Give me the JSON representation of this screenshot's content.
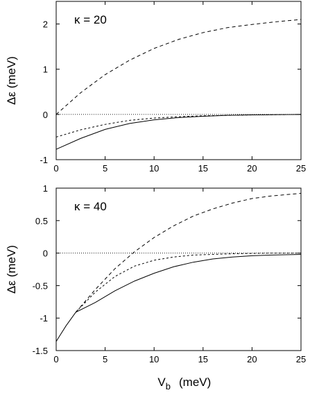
{
  "chart_data": [
    {
      "type": "line",
      "annotation": "κ = 20",
      "ylabel": "Δε  (meV)",
      "xlim": [
        0,
        25
      ],
      "ylim": [
        -1,
        2.5
      ],
      "xticks": [
        "0",
        "5",
        "10",
        "15",
        "20",
        "25"
      ],
      "yticks": [
        "-1",
        "0",
        "1",
        "2"
      ],
      "ytick_values": [
        -1,
        0,
        1,
        2
      ],
      "grid": false,
      "series": [
        {
          "style": "dotted",
          "x": [
            0,
            25
          ],
          "y": [
            0,
            0
          ]
        },
        {
          "style": "long-dash",
          "x": [
            0,
            2.5,
            5,
            7.5,
            10,
            12.5,
            15,
            17.5,
            20,
            22.5,
            25
          ],
          "y": [
            0,
            0.48,
            0.88,
            1.2,
            1.46,
            1.66,
            1.81,
            1.92,
            1.99,
            2.05,
            2.1
          ]
        },
        {
          "style": "short-dash",
          "x": [
            0,
            2.5,
            5,
            7.5,
            10,
            12.5,
            15,
            17.5,
            20,
            22.5,
            25
          ],
          "y": [
            -0.5,
            -0.34,
            -0.22,
            -0.13,
            -0.08,
            -0.05,
            -0.03,
            -0.02,
            -0.01,
            -0.005,
            0
          ]
        },
        {
          "style": "solid",
          "x": [
            0,
            2.5,
            5,
            7.5,
            10,
            12.5,
            15,
            17.5,
            20,
            22.5,
            25
          ],
          "y": [
            -0.77,
            -0.53,
            -0.33,
            -0.2,
            -0.12,
            -0.07,
            -0.04,
            -0.02,
            -0.01,
            -0.005,
            0
          ]
        }
      ]
    },
    {
      "type": "line",
      "annotation": "κ = 40",
      "ylabel": "Δε  (meV)",
      "xlabel_main": "V",
      "xlabel_sub": "b",
      "xlabel_unit": "(meV)",
      "xlim": [
        0,
        25
      ],
      "ylim": [
        -1.5,
        1
      ],
      "xticks": [
        "0",
        "5",
        "10",
        "15",
        "20",
        "25"
      ],
      "yticks": [
        "-1.5",
        "-1",
        "-0.5",
        "0",
        "0.5",
        "1"
      ],
      "ytick_values": [
        -1.5,
        -1,
        -0.5,
        0,
        0.5,
        1
      ],
      "grid": false,
      "series": [
        {
          "style": "dotted",
          "x": [
            0,
            25
          ],
          "y": [
            0,
            0
          ]
        },
        {
          "style": "long-dash",
          "x": [
            2,
            4,
            6,
            8,
            10,
            12,
            14,
            16,
            18,
            20,
            22,
            25
          ],
          "y": [
            -0.91,
            -0.56,
            -0.24,
            0.02,
            0.24,
            0.42,
            0.57,
            0.68,
            0.77,
            0.84,
            0.88,
            0.92
          ]
        },
        {
          "style": "short-dash",
          "x": [
            2,
            4,
            6,
            8,
            10,
            12,
            14,
            16,
            18,
            20,
            22,
            25
          ],
          "y": [
            -0.91,
            -0.6,
            -0.36,
            -0.2,
            -0.11,
            -0.06,
            -0.03,
            -0.02,
            -0.01,
            -0.005,
            0,
            0
          ]
        },
        {
          "style": "solid",
          "x": [
            0,
            1,
            2,
            4,
            6,
            8,
            10,
            12,
            14,
            16,
            18,
            20,
            22,
            25
          ],
          "y": [
            -1.36,
            -1.12,
            -0.91,
            -0.76,
            -0.58,
            -0.43,
            -0.31,
            -0.21,
            -0.14,
            -0.09,
            -0.06,
            -0.04,
            -0.03,
            -0.02
          ]
        }
      ]
    }
  ]
}
